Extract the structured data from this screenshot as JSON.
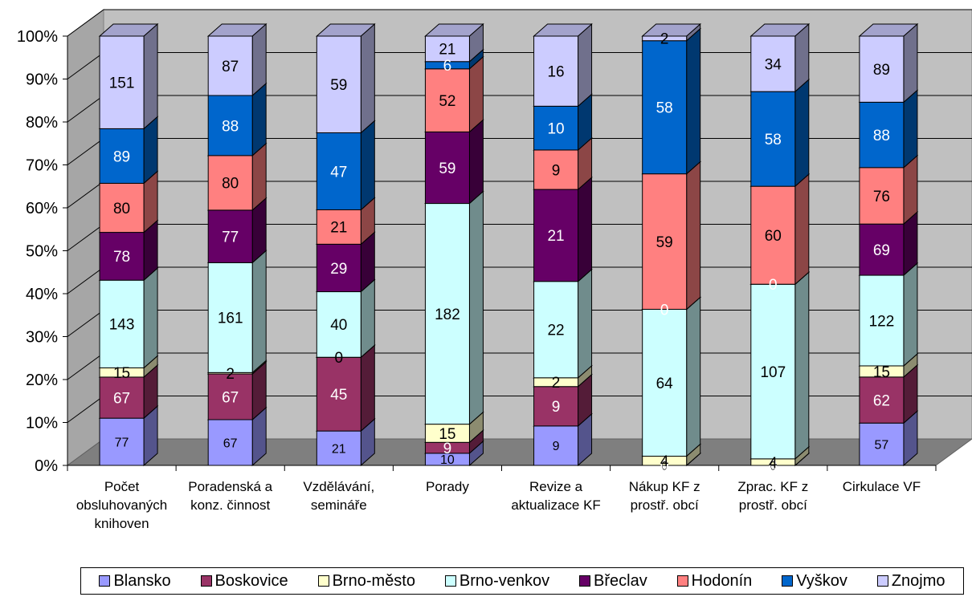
{
  "chart_data": {
    "type": "bar",
    "stacking": "percent",
    "three_d": true,
    "categories": [
      "Počet obsluhovaných knihoven",
      "Poradenská a konz. činnost",
      "Vzdělávání, semináře",
      "Porady",
      "Revize a aktualizace KF",
      "Nákup KF z prostř. obcí",
      "Zprac. KF z prostř. obcí",
      "Cirkulace VF"
    ],
    "category_lines": [
      [
        "Počet",
        "obsluhovaných",
        "knihoven"
      ],
      [
        "Poradenská a",
        "konz. činnost"
      ],
      [
        "Vzdělávání,",
        "semináře"
      ],
      [
        "Porady"
      ],
      [
        "Revize a",
        "aktualizace KF"
      ],
      [
        "Nákup KF z",
        "prostř. obcí"
      ],
      [
        "Zprac. KF z",
        "prostř. obcí"
      ],
      [
        "Cirkulace VF"
      ]
    ],
    "y_ticks": [
      "0%",
      "10%",
      "20%",
      "30%",
      "40%",
      "50%",
      "60%",
      "70%",
      "80%",
      "90%",
      "100%"
    ],
    "ylim": [
      0,
      100
    ],
    "grid": true,
    "legend_position": "bottom",
    "series": [
      {
        "name": "Blansko",
        "color": "#9999ff",
        "values": [
          77,
          67,
          21,
          10,
          9,
          0,
          0,
          57
        ]
      },
      {
        "name": "Boskovice",
        "color": "#993366",
        "values": [
          67,
          67,
          45,
          9,
          9,
          0,
          0,
          62
        ]
      },
      {
        "name": "Brno-město",
        "color": "#ffffcc",
        "values": [
          15,
          2,
          0,
          15,
          2,
          4,
          4,
          15
        ]
      },
      {
        "name": "Brno-venkov",
        "color": "#ccffff",
        "values": [
          143,
          161,
          40,
          182,
          22,
          64,
          107,
          122
        ]
      },
      {
        "name": "Břeclav",
        "color": "#660066",
        "values": [
          78,
          77,
          29,
          59,
          21,
          0,
          0,
          69
        ]
      },
      {
        "name": "Hodonín",
        "color": "#ff8080",
        "values": [
          80,
          80,
          21,
          52,
          9,
          59,
          60,
          76
        ]
      },
      {
        "name": "Vyškov",
        "color": "#0066cc",
        "values": [
          89,
          88,
          47,
          6,
          10,
          58,
          58,
          88
        ]
      },
      {
        "name": "Znojmo",
        "color": "#ccccff",
        "values": [
          151,
          87,
          59,
          21,
          16,
          2,
          34,
          89
        ]
      }
    ]
  }
}
